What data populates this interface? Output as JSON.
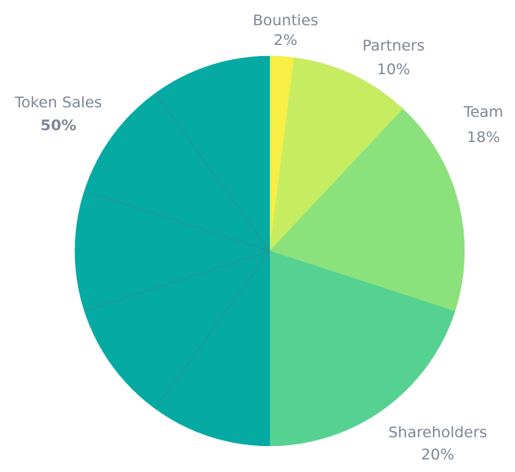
{
  "chart_data": {
    "type": "pie",
    "slices": [
      {
        "label": "Bounties",
        "value": 2,
        "display": "2%",
        "color": "#f7ee46",
        "sub_slices": 1
      },
      {
        "label": "Partners",
        "value": 10,
        "display": "10%",
        "color": "#c6ec62",
        "sub_slices": 1
      },
      {
        "label": "Team",
        "value": 18,
        "display": "18%",
        "color": "#8be17b",
        "sub_slices": 1
      },
      {
        "label": "Shareholders",
        "value": 20,
        "display": "20%",
        "color": "#55d291",
        "sub_slices": 1
      },
      {
        "label": "Token Sales",
        "value": 50,
        "display": "50%",
        "color": "#05aaa3",
        "sub_slices": 5
      }
    ],
    "start_angle": "top",
    "direction": "clockwise",
    "label_color": "#7d8796",
    "divider_color": "#2f8f95",
    "background": "#ffffff",
    "legend": "none"
  }
}
